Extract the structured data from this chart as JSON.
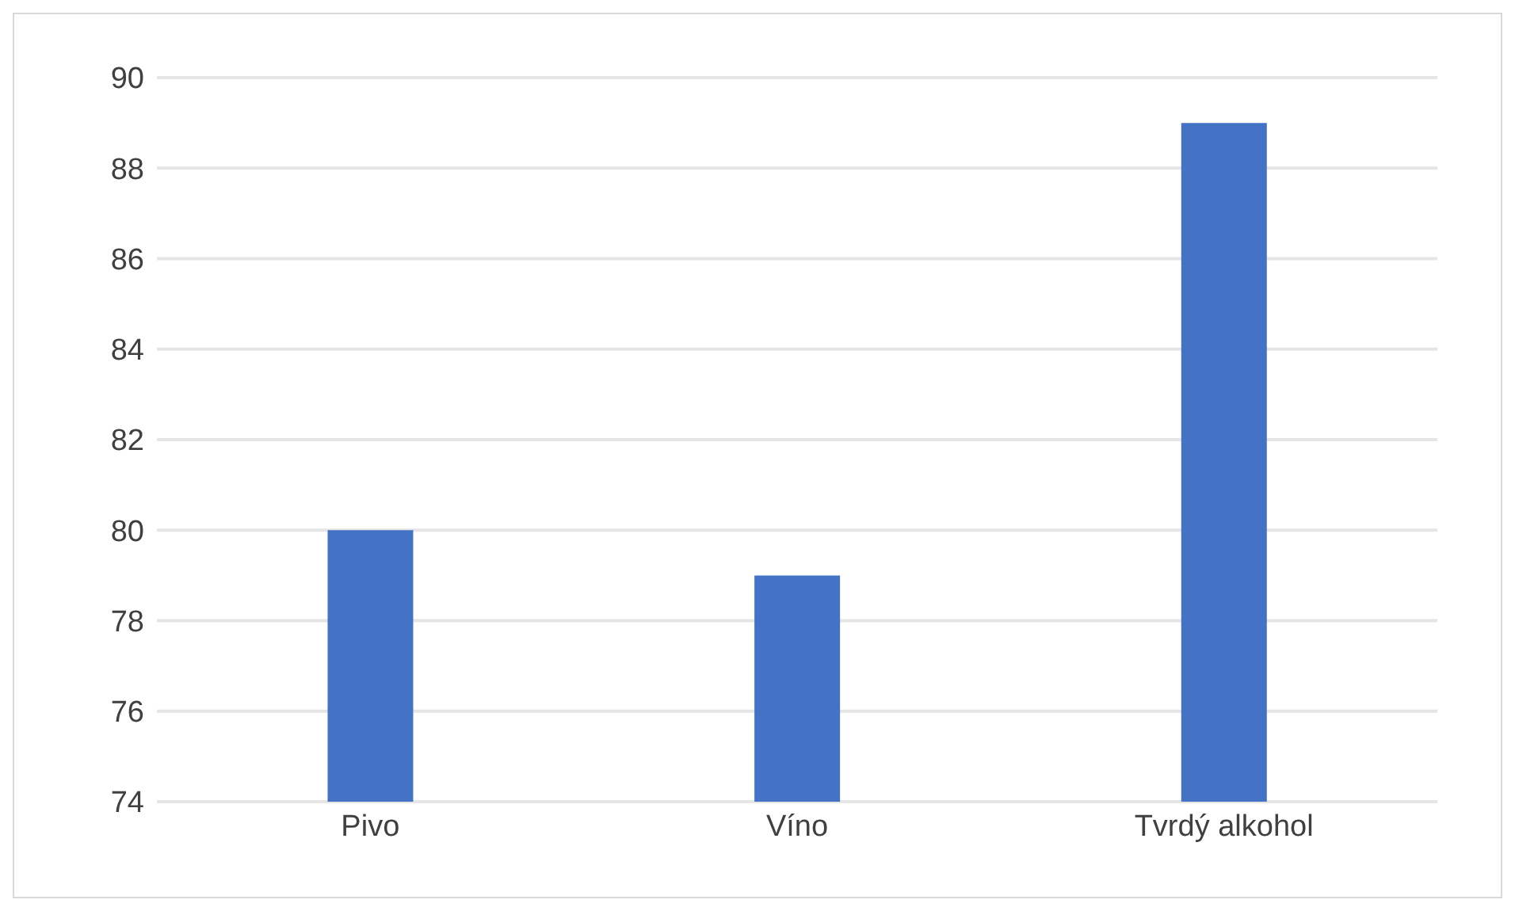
{
  "chart_data": {
    "type": "bar",
    "categories": [
      "Pivo",
      "Víno",
      "Tvrdý alkohol"
    ],
    "values": [
      80,
      79,
      89
    ],
    "color": "#4472c4",
    "ylim": [
      74,
      90
    ],
    "yticks": [
      74,
      76,
      78,
      80,
      82,
      84,
      86,
      88,
      90
    ],
    "grid": "y"
  }
}
